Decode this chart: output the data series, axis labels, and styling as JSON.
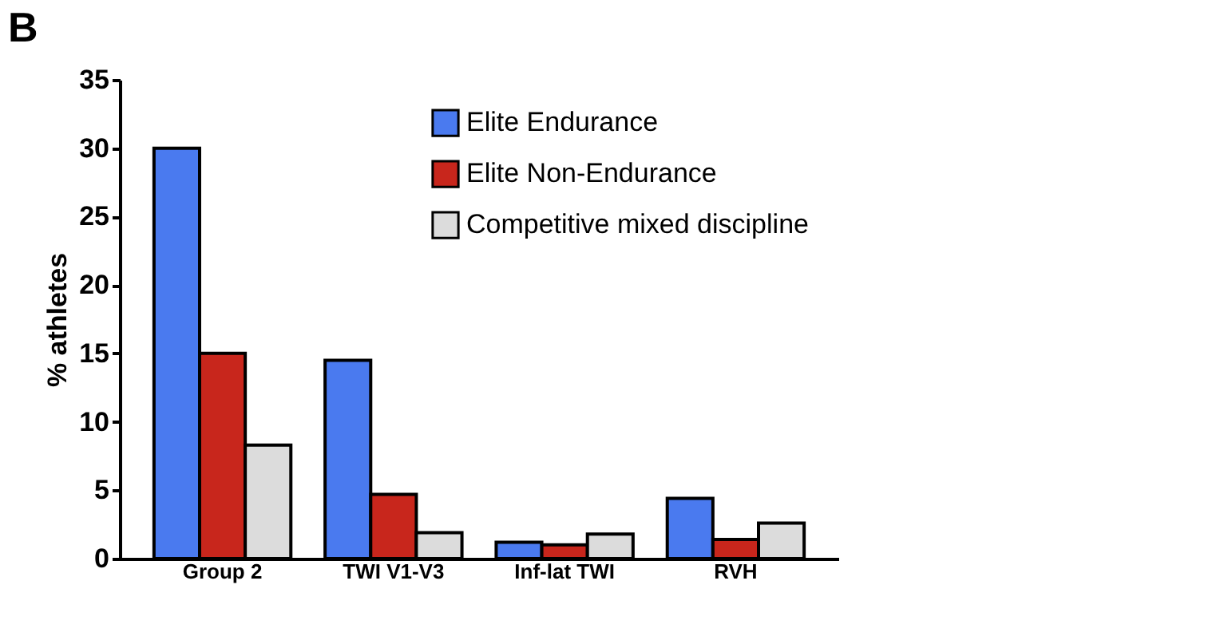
{
  "chart_data": {
    "type": "bar",
    "title": "B",
    "ylabel": "% athletes",
    "categories": [
      "Group 2",
      "TWI V1-V3",
      "Inf-lat TWI",
      "RVH"
    ],
    "series": [
      {
        "name": "Elite Endurance",
        "color": "#4a7aef",
        "values": [
          30,
          14.5,
          1.2,
          4.4
        ]
      },
      {
        "name": "Elite Non-Endurance",
        "color": "#c8261c",
        "values": [
          15,
          4.7,
          1.0,
          1.4
        ]
      },
      {
        "name": "Competitive mixed discipline",
        "color": "#dcdcdc",
        "values": [
          8.3,
          1.9,
          1.8,
          2.6
        ]
      }
    ],
    "ylim": [
      0,
      35
    ],
    "yticks": [
      0,
      5,
      10,
      15,
      20,
      25,
      30,
      35
    ],
    "grid": false,
    "legend": "top right"
  }
}
